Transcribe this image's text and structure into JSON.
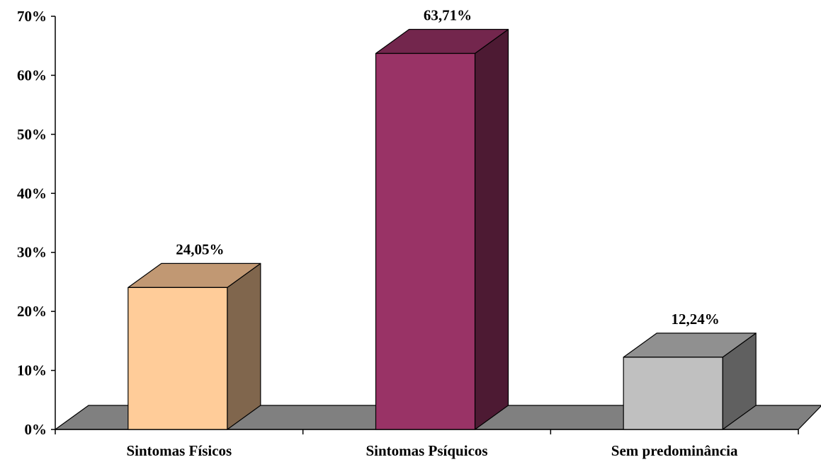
{
  "chart_data": {
    "type": "bar",
    "categories": [
      "Sintomas Físicos",
      "Sintomas Psíquicos",
      "Sem predominância"
    ],
    "values": [
      24.05,
      63.71,
      12.24
    ],
    "value_labels": [
      "24,05%",
      "63,71%",
      "12,24%"
    ],
    "ylim": [
      0,
      70
    ],
    "yticks": [
      0,
      10,
      20,
      30,
      40,
      50,
      60,
      70
    ],
    "ytick_labels": [
      "0%",
      "10%",
      "20%",
      "30%",
      "40%",
      "50%",
      "60%",
      "70%"
    ],
    "style": "3d-column",
    "grid": false,
    "legend": "none",
    "colors": {
      "bars": [
        {
          "front": "#ffcc99",
          "top": "#c19873",
          "side": "#80664d"
        },
        {
          "front": "#993366",
          "top": "#73264d",
          "side": "#4d1a33"
        },
        {
          "front": "#c0c0c0",
          "top": "#909090",
          "side": "#606060"
        }
      ],
      "floor": "#808080"
    }
  }
}
